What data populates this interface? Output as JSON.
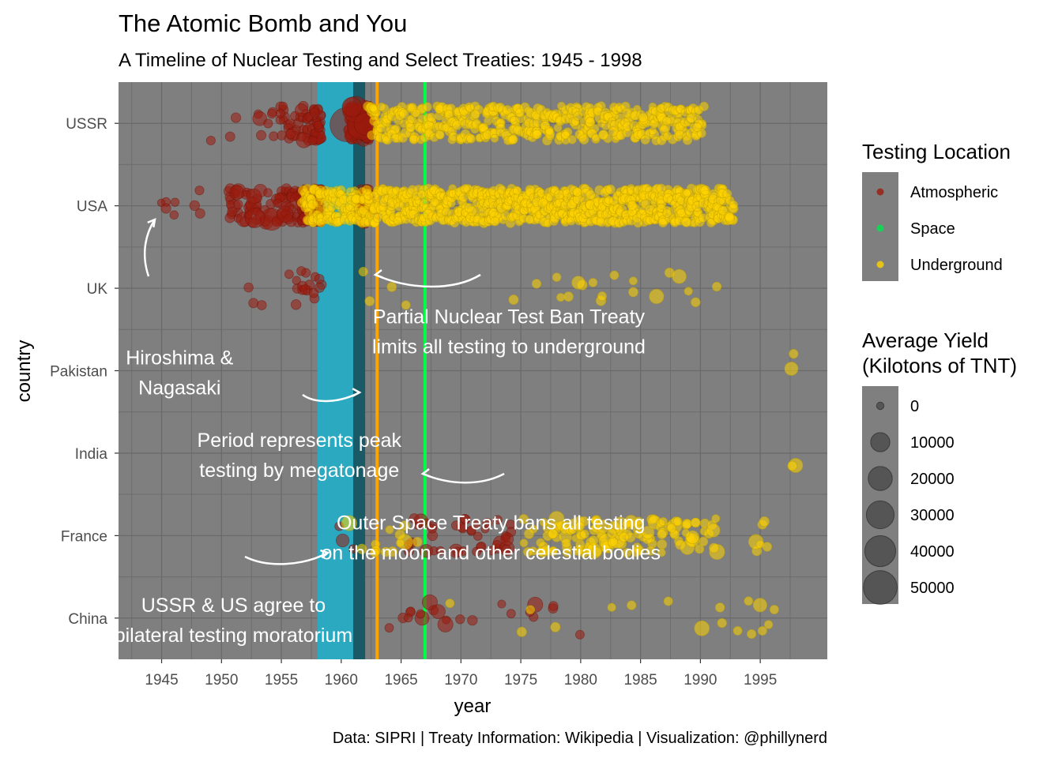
{
  "chart_data": {
    "type": "scatter",
    "title": "The Atomic Bomb and You",
    "subtitle": "A Timeline of Nuclear Testing and Select Treaties: 1945 - 1998",
    "xlabel": "year",
    "ylabel": "country",
    "caption": "Data: SIPRI | Treaty Information: Wikipedia | Visualization: @phillynerd",
    "xlim": [
      1941.4,
      2000.6
    ],
    "x_ticks": [
      "1945",
      "1950",
      "1955",
      "1960",
      "1965",
      "1970",
      "1975",
      "1980",
      "1985",
      "1990",
      "1995"
    ],
    "countries": [
      "USSR",
      "USA",
      "UK",
      "Pakistan",
      "India",
      "France",
      "China"
    ],
    "panel_background": "#7f7f7f",
    "grid": true,
    "colors": {
      "Atmospheric": "#9b1b0e",
      "Space": "#00e64d",
      "Underground": "#ffd400",
      "peak_period": "#2aa9c0",
      "moratorium": "#1a5a66",
      "test_ban_line": "#ffa500",
      "outer_space_line": "#00ff44"
    },
    "periods": [
      {
        "name": "peak megatonage",
        "start": 1958.0,
        "end": 1961.0,
        "color": "#2aa9c0"
      },
      {
        "name": "bilateral moratorium",
        "start": 1961.0,
        "end": 1962.0,
        "color": "#1a5a66"
      }
    ],
    "vlines": [
      {
        "name": "Partial Nuclear Test Ban Treaty",
        "x": 1963.0,
        "color": "#ffa500"
      },
      {
        "name": "Outer Space Treaty",
        "x": 1967.0,
        "color": "#00ff44"
      }
    ],
    "annotations": [
      {
        "id": "hiroshima",
        "lines": [
          "Hiroshima &",
          "Nagasaki"
        ],
        "x": 1946.5,
        "y": 3.0
      },
      {
        "id": "ptbt",
        "lines": [
          "Partial Nuclear Test Ban Treaty",
          "limits all testing to underground"
        ],
        "x": 1974.0,
        "y": 2.5
      },
      {
        "id": "peak",
        "lines": [
          "Period represents peak",
          "testing by megatonage"
        ],
        "x": 1956.5,
        "y": 4.0
      },
      {
        "id": "ost",
        "lines": [
          "Outer Space Treaty bans all testing",
          "on the moon and other celestial bodies"
        ],
        "x": 1972.5,
        "y": 5.0
      },
      {
        "id": "moratorium",
        "lines": [
          "USSR & US agree to",
          "bilateral testing moratorium"
        ],
        "x": 1951.0,
        "y": 6.0
      }
    ],
    "legend_placement": "right",
    "legend_location_title": "Testing Location",
    "legend_location": [
      "Atmospheric",
      "Space",
      "Underground"
    ],
    "legend_yield_title": [
      "Average Yield",
      "(Kilotons of TNT)"
    ],
    "legend_yield_values": [
      0,
      10000,
      20000,
      30000,
      40000,
      50000
    ],
    "series": [
      {
        "country": "USSR",
        "groups": [
          {
            "location": "Atmospheric",
            "from": 1949,
            "to": 1962,
            "weights": {
              "1949": 1,
              "1951": 2,
              "1953": 3,
              "1954": 4,
              "1955": 8,
              "1956": 10,
              "1957": 16,
              "1958": 30,
              "1961": 50,
              "1962": 60
            }
          },
          {
            "location": "Atmospheric",
            "from": 1961,
            "to": 1962,
            "large": [
              [
                1960.5,
                50000
              ],
              [
                1961.7,
                30000
              ],
              [
                1961.2,
                24000
              ],
              [
                1962.0,
                15000
              ],
              [
                1960.9,
                10000
              ]
            ]
          },
          {
            "location": "Underground",
            "from": 1962.5,
            "to": 1990,
            "density": 16
          }
        ]
      },
      {
        "country": "USA",
        "groups": [
          {
            "location": "Atmospheric",
            "from": 1945,
            "to": 1962,
            "weights": {
              "1945": 3,
              "1946": 2,
              "1948": 3,
              "1951": 16,
              "1952": 10,
              "1953": 11,
              "1954": 6,
              "1955": 18,
              "1956": 18,
              "1957": 24,
              "1958": 60,
              "1962": 40
            }
          },
          {
            "location": "Atmospheric",
            "from": 1952,
            "to": 1958,
            "large": [
              [
                1954.2,
                15000
              ],
              [
                1952.8,
                10000
              ],
              [
                1956.5,
                8000
              ],
              [
                1957.8,
                6000
              ],
              [
                1955.3,
                5000
              ]
            ]
          },
          {
            "location": "Underground",
            "from": 1957,
            "to": 1992.5,
            "density": 26
          }
        ]
      },
      {
        "country": "UK",
        "groups": [
          {
            "location": "Atmospheric",
            "from": 1952,
            "to": 1958,
            "weights": {
              "1952": 1,
              "1953": 2,
              "1956": 4,
              "1957": 7,
              "1958": 6
            }
          },
          {
            "location": "Underground",
            "from": 1962,
            "to": 1991,
            "weights": {
              "1962": 2,
              "1964": 1,
              "1965": 1,
              "1974": 1,
              "1976": 1,
              "1978": 2,
              "1979": 1,
              "1980": 2,
              "1981": 1,
              "1982": 2,
              "1983": 1,
              "1984": 2,
              "1986": 1,
              "1987": 1,
              "1988": 1,
              "1989": 1,
              "1990": 1,
              "1991": 1
            }
          }
        ]
      },
      {
        "country": "Pakistan",
        "groups": [
          {
            "location": "Underground",
            "from": 1998,
            "to": 1998,
            "weights": {
              "1998": 2
            }
          }
        ]
      },
      {
        "country": "India",
        "groups": [
          {
            "location": "Underground",
            "from": 1998,
            "to": 1998,
            "weights": {
              "1998": 2
            }
          }
        ]
      },
      {
        "country": "France",
        "groups": [
          {
            "location": "Atmospheric",
            "from": 1960,
            "to": 1974,
            "weights": {
              "1960": 2,
              "1961": 1,
              "1966": 5,
              "1967": 3,
              "1968": 5,
              "1970": 8,
              "1971": 5,
              "1972": 4,
              "1973": 5,
              "1974": 7
            }
          },
          {
            "location": "Underground",
            "from": 1961,
            "to": 1996,
            "weights": {
              "1961": 1,
              "1962": 1,
              "1963": 3,
              "1964": 3,
              "1965": 4,
              "1966": 1,
              "1975": 2,
              "1976": 4,
              "1977": 8,
              "1978": 9,
              "1979": 10,
              "1980": 12,
              "1981": 12,
              "1982": 10,
              "1983": 9,
              "1984": 8,
              "1985": 8,
              "1986": 8,
              "1987": 8,
              "1988": 8,
              "1989": 9,
              "1990": 6,
              "1991": 6,
              "1995": 5,
              "1996": 1
            }
          }
        ]
      },
      {
        "country": "China",
        "groups": [
          {
            "location": "Atmospheric",
            "from": 1964,
            "to": 1980,
            "weights": {
              "1964": 1,
              "1965": 1,
              "1966": 3,
              "1967": 2,
              "1968": 1,
              "1969": 1,
              "1970": 1,
              "1971": 1,
              "1973": 1,
              "1974": 1,
              "1976": 2,
              "1978": 2,
              "1980": 1
            }
          },
          {
            "location": "Atmospheric",
            "from": 1967,
            "to": 1976,
            "large": [
              [
                1967.4,
                4000
              ],
              [
                1968.7,
                4000
              ],
              [
                1976.2,
                4000
              ],
              [
                1968.1,
                3000
              ]
            ]
          },
          {
            "location": "Underground",
            "from": 1969,
            "to": 1996,
            "weights": {
              "1969": 1,
              "1975": 1,
              "1976": 1,
              "1978": 1,
              "1983": 1,
              "1984": 1,
              "1987": 1,
              "1990": 1,
              "1992": 2,
              "1993": 1,
              "1994": 2,
              "1995": 2,
              "1996": 2
            }
          }
        ]
      }
    ]
  }
}
